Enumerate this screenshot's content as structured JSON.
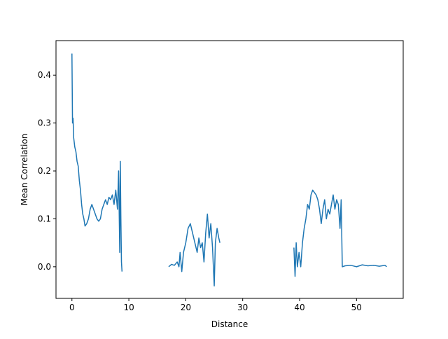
{
  "chart_data": {
    "type": "line",
    "xlabel": "Distance",
    "ylabel": "Mean Correlation",
    "xlim": [
      -2.8,
      58.2
    ],
    "ylim": [
      -0.066,
      0.472
    ],
    "xticks": [
      0,
      10,
      20,
      30,
      40,
      50
    ],
    "yticks": [
      {
        "value": 0,
        "label": "0.0"
      },
      0.1,
      0.2,
      0.3,
      0.4
    ],
    "x": [
      0,
      0.1,
      0.2,
      0.3,
      0.5,
      0.7,
      0.9,
      1.1,
      1.3,
      1.5,
      1.7,
      1.9,
      2.1,
      2.3,
      2.6,
      2.9,
      3.2,
      3.5,
      3.8,
      4.1,
      4.4,
      4.7,
      5.0,
      5.3,
      5.6,
      5.9,
      6.2,
      6.5,
      6.8,
      7.1,
      7.4,
      7.7,
      8.0,
      8.2,
      8.4,
      8.5,
      8.6,
      8.7,
      8.8,
      12,
      17,
      17.5,
      18,
      18.5,
      18.8,
      19,
      19.3,
      19.6,
      20,
      20.4,
      20.8,
      21.2,
      21.6,
      22,
      22.3,
      22.6,
      22.9,
      23.2,
      23.5,
      23.8,
      24.1,
      24.4,
      24.7,
      25,
      25.2,
      25.5,
      25.8,
      26,
      30,
      39,
      39.2,
      39.4,
      39.6,
      39.9,
      40.2,
      40.5,
      40.8,
      41.1,
      41.4,
      41.7,
      42,
      42.3,
      42.6,
      42.9,
      43.2,
      43.5,
      43.8,
      44.1,
      44.4,
      44.7,
      45,
      45.3,
      45.6,
      45.9,
      46.2,
      46.5,
      46.8,
      47.1,
      47.3,
      47.5,
      48,
      49,
      50,
      51,
      52,
      53,
      54,
      55,
      55.3
    ],
    "series": [
      {
        "name": "Mean Correlation",
        "color": "#1f77b4",
        "values": [
          0.445,
          0.3,
          0.31,
          0.27,
          0.25,
          0.24,
          0.22,
          0.21,
          0.18,
          0.16,
          0.13,
          0.11,
          0.1,
          0.085,
          0.09,
          0.1,
          0.12,
          0.13,
          0.12,
          0.11,
          0.1,
          0.095,
          0.1,
          0.12,
          0.13,
          0.14,
          0.13,
          0.145,
          0.14,
          0.15,
          0.13,
          0.16,
          0.12,
          0.2,
          0.03,
          0.22,
          0.1,
          0.01,
          -0.01,
          null,
          0.0,
          0.005,
          0.003,
          0.01,
          0.0,
          0.03,
          -0.01,
          0.03,
          0.05,
          0.08,
          0.09,
          0.07,
          0.05,
          0.03,
          0.06,
          0.04,
          0.05,
          0.01,
          0.07,
          0.11,
          0.06,
          0.09,
          0.04,
          -0.04,
          0.05,
          0.08,
          0.06,
          0.05,
          null,
          0.04,
          -0.02,
          0.05,
          0.0,
          0.03,
          0.0,
          0.05,
          0.08,
          0.1,
          0.13,
          0.12,
          0.15,
          0.16,
          0.155,
          0.15,
          0.14,
          0.12,
          0.09,
          0.12,
          0.14,
          0.1,
          0.12,
          0.11,
          0.13,
          0.15,
          0.12,
          0.14,
          0.13,
          0.08,
          0.14,
          0.0,
          0.002,
          0.003,
          0.0,
          0.004,
          0.002,
          0.003,
          0.001,
          0.003,
          0.0
        ]
      }
    ]
  }
}
